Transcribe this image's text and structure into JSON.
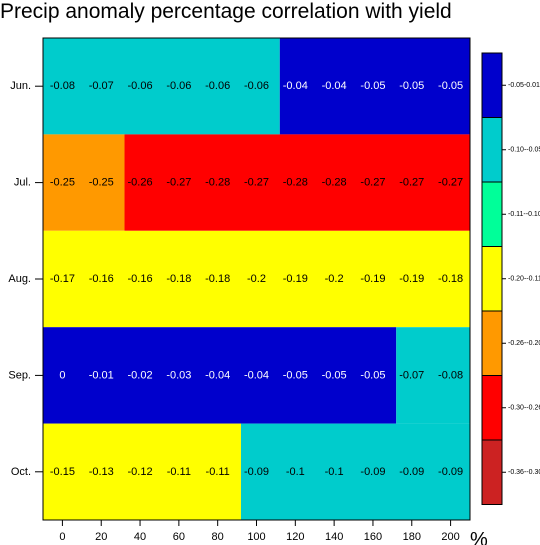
{
  "chart_data": {
    "type": "heatmap",
    "title": "Precip anomaly percentage correlation with yield",
    "x_unit": "%",
    "x_values": [
      0,
      20,
      40,
      60,
      80,
      100,
      120,
      140,
      160,
      180,
      200
    ],
    "x_ticks": [
      0,
      20,
      40,
      60,
      80,
      100,
      120,
      140,
      160,
      180,
      200
    ],
    "rows": [
      "Jun.",
      "Jul.",
      "Aug.",
      "Sep.",
      "Oct."
    ],
    "values": [
      [
        -0.08,
        -0.07,
        -0.06,
        -0.06,
        -0.06,
        -0.06,
        -0.04,
        -0.04,
        -0.05,
        -0.05,
        -0.05
      ],
      [
        -0.25,
        -0.25,
        -0.26,
        -0.27,
        -0.28,
        -0.27,
        -0.28,
        -0.28,
        -0.27,
        -0.27,
        -0.27
      ],
      [
        -0.17,
        -0.16,
        -0.16,
        -0.18,
        -0.18,
        -0.2,
        -0.19,
        -0.2,
        -0.19,
        -0.19,
        -0.18
      ],
      [
        0,
        -0.01,
        -0.02,
        -0.03,
        -0.04,
        -0.04,
        -0.05,
        -0.05,
        -0.05,
        -0.07,
        -0.08
      ],
      [
        -0.15,
        -0.13,
        -0.12,
        -0.11,
        -0.11,
        -0.09,
        -0.1,
        -0.1,
        -0.09,
        -0.09,
        -0.09
      ]
    ],
    "value_labels": [
      [
        "-0.08",
        "-0.07",
        "-0.06",
        "-0.06",
        "-0.06",
        "-0.06",
        "-0.04",
        "-0.04",
        "-0.05",
        "-0.05",
        "-0.05"
      ],
      [
        "-0.25",
        "-0.25",
        "-0.26",
        "-0.27",
        "-0.28",
        "-0.27",
        "-0.28",
        "-0.28",
        "-0.27",
        "-0.27",
        "-0.27"
      ],
      [
        "-0.17",
        "-0.16",
        "-0.16",
        "-0.18",
        "-0.18",
        "-0.2",
        "-0.19",
        "-0.2",
        "-0.19",
        "-0.19",
        "-0.18"
      ],
      [
        "0",
        "-0.01",
        "-0.02",
        "-0.03",
        "-0.04",
        "-0.04",
        "-0.05",
        "-0.05",
        "-0.05",
        "-0.07",
        "-0.08"
      ],
      [
        "-0.15",
        "-0.13",
        "-0.12",
        "-0.11",
        "-0.11",
        "-0.09",
        "-0.1",
        "-0.1",
        "-0.09",
        "-0.09",
        "-0.09"
      ]
    ],
    "fill_segments": [
      [
        {
          "from": -10,
          "to": 112,
          "color": "#00cccc"
        },
        {
          "from": 112,
          "to": 210,
          "color": "#0000cc"
        }
      ],
      [
        {
          "from": -10,
          "to": 32,
          "color": "#ff9900"
        },
        {
          "from": 32,
          "to": 210,
          "color": "#ff0000"
        }
      ],
      [
        {
          "from": -10,
          "to": 210,
          "color": "#ffff00"
        }
      ],
      [
        {
          "from": -10,
          "to": 172,
          "color": "#0000cc"
        },
        {
          "from": 172,
          "to": 210,
          "color": "#00cccc"
        }
      ],
      [
        {
          "from": -10,
          "to": 92,
          "color": "#ffff00"
        },
        {
          "from": 92,
          "to": 210,
          "color": "#00cccc"
        }
      ]
    ],
    "legend": [
      {
        "label": "-0.05-0.01",
        "color": "#0000cc",
        "text_color": "#000000"
      },
      {
        "label": "-0.10--0.05",
        "color": "#00cccc",
        "text_color": "#000000"
      },
      {
        "label": "-0.11--0.10",
        "color": "#00ff99",
        "text_color": "#000000"
      },
      {
        "label": "-0.20--0.11",
        "color": "#ffff00",
        "text_color": "#000000"
      },
      {
        "label": "-0.26--0.20",
        "color": "#ff9900",
        "text_color": "#000000"
      },
      {
        "label": "-0.30--0.26",
        "color": "#ff0000",
        "text_color": "#000000"
      },
      {
        "label": "-0.36--0.30",
        "color": "#cc2222",
        "text_color": "#000000"
      }
    ],
    "legend_placement": "right",
    "grid": false
  }
}
